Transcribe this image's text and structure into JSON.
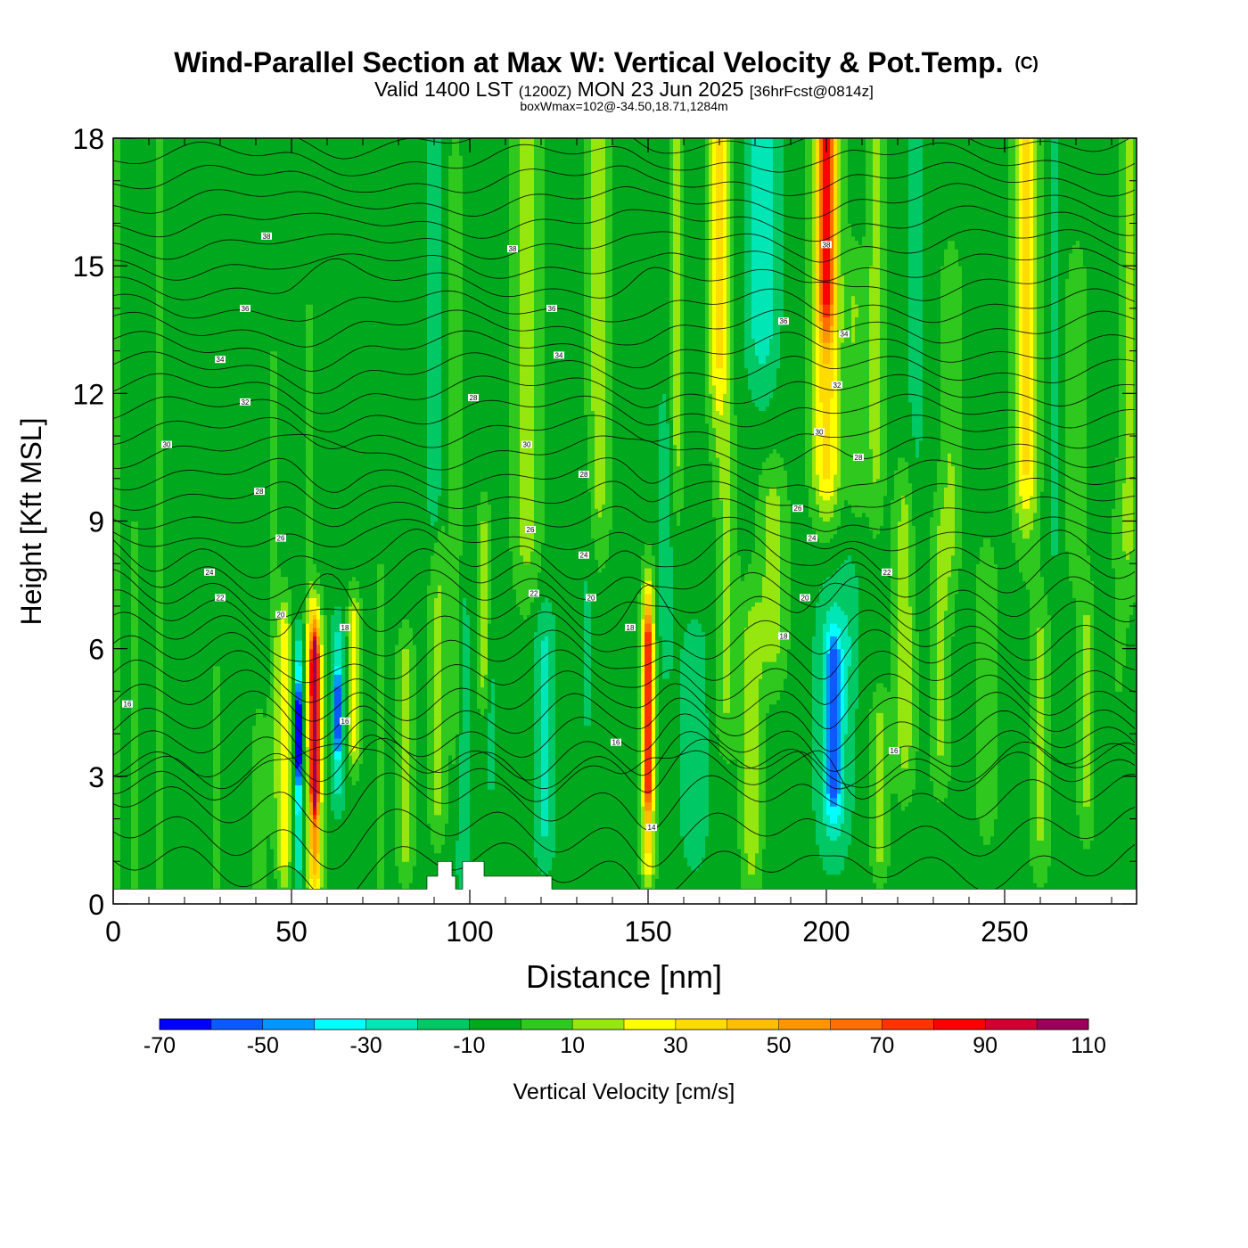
{
  "chart_data": {
    "type": "heatmap",
    "title": "Wind-Parallel Section at Max W: Vertical Velocity & Pot.Temp.",
    "title_mark": "(C)",
    "subtitle": {
      "valid": "Valid 1400 LST",
      "utc": "(1200Z)",
      "date": "MON 23 Jun 2025",
      "forecast": "[36hrFcst@0814z]"
    },
    "box_info": "boxWmax=102@-34.50,18.71,1284m",
    "xlabel": "Distance [nm]",
    "ylabel": "Height [Kft MSL]",
    "xlim": [
      0,
      287
    ],
    "ylim": [
      0,
      18
    ],
    "x_ticks": [
      0,
      50,
      100,
      150,
      200,
      250
    ],
    "y_ticks": [
      0,
      3,
      6,
      9,
      12,
      15,
      18
    ],
    "background_value": -5,
    "colorbar": {
      "label": "Vertical Velocity [cm/s]",
      "tick_labels": [
        "-70",
        "-50",
        "-30",
        "-10",
        "10",
        "30",
        "50",
        "70",
        "90",
        "110"
      ],
      "bounds": [
        -70,
        -60,
        -50,
        -40,
        -30,
        -20,
        -10,
        0,
        10,
        20,
        30,
        40,
        50,
        60,
        70,
        80,
        90,
        100,
        110
      ],
      "colors": [
        "#0000ff",
        "#0a5aff",
        "#0096ff",
        "#00ffff",
        "#00e6b4",
        "#00c864",
        "#00a81e",
        "#2ec81e",
        "#96e60f",
        "#ffff00",
        "#ffdc00",
        "#ffbe00",
        "#ff9600",
        "#ff6e00",
        "#ff3200",
        "#ff0000",
        "#d20032",
        "#9b005a"
      ]
    },
    "terrain": [
      [
        0,
        0.35
      ],
      [
        88,
        0.35
      ],
      [
        88,
        0.65
      ],
      [
        91,
        0.65
      ],
      [
        91,
        1.0
      ],
      [
        95,
        1.0
      ],
      [
        95,
        0.65
      ],
      [
        96,
        0.65
      ],
      [
        96,
        0.35
      ],
      [
        98,
        0.35
      ],
      [
        98,
        1.0
      ],
      [
        104,
        1.0
      ],
      [
        104,
        0.65
      ],
      [
        123,
        0.65
      ],
      [
        123,
        0.35
      ],
      [
        287,
        0.35
      ]
    ],
    "features": [
      {
        "x": 1,
        "y0": 0.3,
        "y1": 18,
        "v": 2,
        "wx": 2,
        "wy": 99
      },
      {
        "x": 6,
        "y0": 0.3,
        "y1": 8,
        "v": 2,
        "wx": 1.5,
        "wy": 2
      },
      {
        "x": 13,
        "y0": 0.3,
        "y1": 18,
        "v": 3,
        "wx": 2,
        "wy": 99
      },
      {
        "x": 17,
        "y0": 0.3,
        "y1": 3,
        "v": -5,
        "wx": 1.5,
        "wy": 1
      },
      {
        "x": 24,
        "y0": 0.3,
        "y1": 3,
        "v": -5,
        "wx": 1.5,
        "wy": 1
      },
      {
        "x": 29,
        "y0": 0.3,
        "y1": 5,
        "v": 3,
        "wx": 2,
        "wy": 1
      },
      {
        "x": 36,
        "y0": 0.3,
        "y1": 2.5,
        "v": -5,
        "wx": 1,
        "wy": 1
      },
      {
        "x": 41,
        "y0": 0.5,
        "y1": 3.5,
        "v": 4,
        "wx": 2.5,
        "wy": 1.5
      },
      {
        "x": 45,
        "y0": 3,
        "y1": 12,
        "v": 4,
        "wx": 1.5,
        "wy": 1.5
      },
      {
        "x": 48,
        "y0": 1.5,
        "y1": 6,
        "v": 30,
        "wx": 2,
        "wy": 1.2
      },
      {
        "x": 52,
        "y0": 1.5,
        "y1": 5.5,
        "v": -35,
        "wx": 1.5,
        "wy": 1
      },
      {
        "x": 52,
        "y0": 3.5,
        "y1": 4.5,
        "v": -65,
        "wx": 0.7,
        "wy": 0.6
      },
      {
        "x": 55,
        "y0": 6.5,
        "y1": 13,
        "v": 3,
        "wx": 1.2,
        "wy": 2
      },
      {
        "x": 56.5,
        "y0": 1.2,
        "y1": 6,
        "v": 50,
        "wx": 2.2,
        "wy": 1.2
      },
      {
        "x": 56.5,
        "y0": 3,
        "y1": 5.5,
        "v": 95,
        "wx": 1,
        "wy": 0.8
      },
      {
        "x": 63,
        "y0": 3,
        "y1": 6,
        "v": -25,
        "wx": 2,
        "wy": 0.9
      },
      {
        "x": 63,
        "y0": 4,
        "y1": 5,
        "v": -45,
        "wx": 0.8,
        "wy": 0.5
      },
      {
        "x": 67.5,
        "y0": 4,
        "y1": 6.5,
        "v": 25,
        "wx": 1.8,
        "wy": 0.9
      },
      {
        "x": 75,
        "y0": 1,
        "y1": 7,
        "v": 3,
        "wx": 2,
        "wy": 1.5
      },
      {
        "x": 82,
        "y0": 1.5,
        "y1": 5.5,
        "v": 15,
        "wx": 2.5,
        "wy": 1
      },
      {
        "x": 90,
        "y0": 9.5,
        "y1": 17,
        "v": -20,
        "wx": 1.8,
        "wy": 1.5
      },
      {
        "x": 91,
        "y0": 2.5,
        "y1": 8,
        "v": 12,
        "wx": 2.5,
        "wy": 1.2
      },
      {
        "x": 96,
        "y0": 5,
        "y1": 17,
        "v": 10,
        "wx": 1.5,
        "wy": 2
      },
      {
        "x": 98,
        "y0": 1,
        "y1": 6.5,
        "v": -15,
        "wx": 2,
        "wy": 1
      },
      {
        "x": 104,
        "y0": 5.5,
        "y1": 8.5,
        "v": 15,
        "wx": 2,
        "wy": 1
      },
      {
        "x": 106,
        "y0": 3.5,
        "y1": 6,
        "v": -15,
        "wx": 1.5,
        "wy": 1
      },
      {
        "x": 116,
        "y0": 9,
        "y1": 18,
        "v": 15,
        "wx": 4,
        "wy": 2
      },
      {
        "x": 121,
        "y0": 2,
        "y1": 6,
        "v": -22,
        "wx": 3,
        "wy": 1.2
      },
      {
        "x": 133,
        "y0": 5,
        "y1": 10,
        "v": -12,
        "wx": 2.5,
        "wy": 1.5
      },
      {
        "x": 136,
        "y0": 10,
        "y1": 18,
        "v": 15,
        "wx": 3.5,
        "wy": 2
      },
      {
        "x": 145,
        "y0": 3.5,
        "y1": 18,
        "v": -10,
        "wx": 2.5,
        "wy": 2
      },
      {
        "x": 150,
        "y0": 1.5,
        "y1": 6.8,
        "v": 35,
        "wx": 2,
        "wy": 1.2
      },
      {
        "x": 150,
        "y0": 3,
        "y1": 6,
        "v": 55,
        "wx": 1,
        "wy": 0.8
      },
      {
        "x": 155,
        "y0": 6.5,
        "y1": 11,
        "v": -15,
        "wx": 2.5,
        "wy": 1.5
      },
      {
        "x": 158,
        "y0": 11,
        "y1": 18,
        "v": 15,
        "wx": 2,
        "wy": 2
      },
      {
        "x": 163,
        "y0": 2,
        "y1": 5.5,
        "v": -20,
        "wx": 3.5,
        "wy": 1.2
      },
      {
        "x": 170,
        "y0": 13,
        "y1": 18,
        "v": 32,
        "wx": 3,
        "wy": 2
      },
      {
        "x": 172,
        "y0": 5,
        "y1": 10,
        "v": 12,
        "wx": 3,
        "wy": 1.5
      },
      {
        "x": 179,
        "y0": 1.5,
        "y1": 6,
        "v": 15,
        "wx": 3,
        "wy": 1.5
      },
      {
        "x": 182,
        "y0": 14,
        "y1": 18,
        "v": -28,
        "wx": 4.5,
        "wy": 2
      },
      {
        "x": 185,
        "y0": 6.5,
        "y1": 9,
        "v": 15,
        "wx": 4,
        "wy": 1.5
      },
      {
        "x": 200,
        "y0": 10.5,
        "y1": 18,
        "v": 35,
        "wx": 4,
        "wy": 1.5
      },
      {
        "x": 200,
        "y0": 14.5,
        "y1": 18,
        "v": 48,
        "wx": 2.2,
        "wy": 1.2
      },
      {
        "x": 202,
        "y0": 2.5,
        "y1": 6,
        "v": -28,
        "wx": 4.5,
        "wy": 1.5
      },
      {
        "x": 202,
        "y0": 3,
        "y1": 5.5,
        "v": -38,
        "wx": 2,
        "wy": 0.8
      },
      {
        "x": 207,
        "y0": 6,
        "y1": 11,
        "v": -12,
        "wx": 3,
        "wy": 1.5
      },
      {
        "x": 208,
        "y0": 10,
        "y1": 14,
        "v": 10,
        "wx": 3,
        "wy": 1.5
      },
      {
        "x": 215,
        "y0": 1.5,
        "y1": 4,
        "v": 15,
        "wx": 2.5,
        "wy": 1
      },
      {
        "x": 214,
        "y0": 11,
        "y1": 18,
        "v": 15,
        "wx": 2.5,
        "wy": 2
      },
      {
        "x": 222,
        "y0": 4,
        "y1": 9,
        "v": 15,
        "wx": 3,
        "wy": 1.5
      },
      {
        "x": 225,
        "y0": 10,
        "y1": 18,
        "v": -12,
        "wx": 3,
        "wy": 2
      },
      {
        "x": 232,
        "y0": 4,
        "y1": 8,
        "v": 12,
        "wx": 3,
        "wy": 1.5
      },
      {
        "x": 235,
        "y0": 9,
        "y1": 14,
        "v": 10,
        "wx": 3,
        "wy": 1.5
      },
      {
        "x": 237,
        "y0": 1,
        "y1": 3,
        "v": -5,
        "wx": 3,
        "wy": 1
      },
      {
        "x": 245,
        "y0": 3,
        "y1": 7,
        "v": 10,
        "wx": 3,
        "wy": 1.5
      },
      {
        "x": 256,
        "y0": 10.5,
        "y1": 18,
        "v": 32,
        "wx": 3.5,
        "wy": 2
      },
      {
        "x": 260,
        "y0": 2,
        "y1": 6,
        "v": 12,
        "wx": 3,
        "wy": 1.5
      },
      {
        "x": 264,
        "y0": 9,
        "y1": 18,
        "v": -12,
        "wx": 2.5,
        "wy": 2
      },
      {
        "x": 270,
        "y0": 9,
        "y1": 14,
        "v": 10,
        "wx": 3,
        "wy": 1.5
      },
      {
        "x": 273,
        "y0": 3,
        "y1": 6,
        "v": 15,
        "wx": 2.5,
        "wy": 1.5
      },
      {
        "x": 277,
        "y0": 3,
        "y1": 6,
        "v": -10,
        "wx": 2,
        "wy": 1.5
      },
      {
        "x": 285,
        "y0": 9,
        "y1": 18,
        "v": 12,
        "wx": 2.5,
        "wy": 2
      },
      {
        "x": 282,
        "y0": 6,
        "y1": 9,
        "v": 3,
        "wx": 2,
        "wy": 1.5
      }
    ],
    "contour_levels": [
      14,
      16,
      18,
      20,
      22,
      24,
      26,
      28,
      30,
      32,
      34,
      36,
      38
    ],
    "contour_labels": [
      {
        "x": 4,
        "y": 4.7,
        "text": "16"
      },
      {
        "x": 15,
        "y": 10.8,
        "text": "30"
      },
      {
        "x": 27,
        "y": 7.8,
        "text": "24"
      },
      {
        "x": 30,
        "y": 12.8,
        "text": "34"
      },
      {
        "x": 30,
        "y": 7.2,
        "text": "22"
      },
      {
        "x": 37,
        "y": 14.0,
        "text": "36"
      },
      {
        "x": 37,
        "y": 11.8,
        "text": "32"
      },
      {
        "x": 41,
        "y": 9.7,
        "text": "28"
      },
      {
        "x": 43,
        "y": 15.7,
        "text": "38"
      },
      {
        "x": 47,
        "y": 8.6,
        "text": "26"
      },
      {
        "x": 47,
        "y": 6.8,
        "text": "20"
      },
      {
        "x": 65,
        "y": 6.5,
        "text": "18"
      },
      {
        "x": 65,
        "y": 4.3,
        "text": "16"
      },
      {
        "x": 101,
        "y": 11.9,
        "text": "28"
      },
      {
        "x": 112,
        "y": 15.4,
        "text": "38"
      },
      {
        "x": 116,
        "y": 10.8,
        "text": "30"
      },
      {
        "x": 117,
        "y": 8.8,
        "text": "26"
      },
      {
        "x": 118,
        "y": 7.3,
        "text": "22"
      },
      {
        "x": 123,
        "y": 14.0,
        "text": "36"
      },
      {
        "x": 125,
        "y": 12.9,
        "text": "34"
      },
      {
        "x": 132,
        "y": 10.1,
        "text": "28"
      },
      {
        "x": 132,
        "y": 8.2,
        "text": "24"
      },
      {
        "x": 134,
        "y": 7.2,
        "text": "20"
      },
      {
        "x": 141,
        "y": 3.8,
        "text": "16"
      },
      {
        "x": 145,
        "y": 6.5,
        "text": "18"
      },
      {
        "x": 151,
        "y": 1.8,
        "text": "14"
      },
      {
        "x": 188,
        "y": 13.7,
        "text": "36"
      },
      {
        "x": 188,
        "y": 6.3,
        "text": "18"
      },
      {
        "x": 192,
        "y": 9.3,
        "text": "26"
      },
      {
        "x": 194,
        "y": 7.2,
        "text": "20"
      },
      {
        "x": 196,
        "y": 8.6,
        "text": "24"
      },
      {
        "x": 198,
        "y": 11.1,
        "text": "30"
      },
      {
        "x": 200,
        "y": 15.5,
        "text": "38"
      },
      {
        "x": 203,
        "y": 12.2,
        "text": "32"
      },
      {
        "x": 205,
        "y": 13.4,
        "text": "34"
      },
      {
        "x": 209,
        "y": 10.5,
        "text": "28"
      },
      {
        "x": 217,
        "y": 7.8,
        "text": "22"
      },
      {
        "x": 219,
        "y": 3.6,
        "text": "16"
      }
    ]
  }
}
